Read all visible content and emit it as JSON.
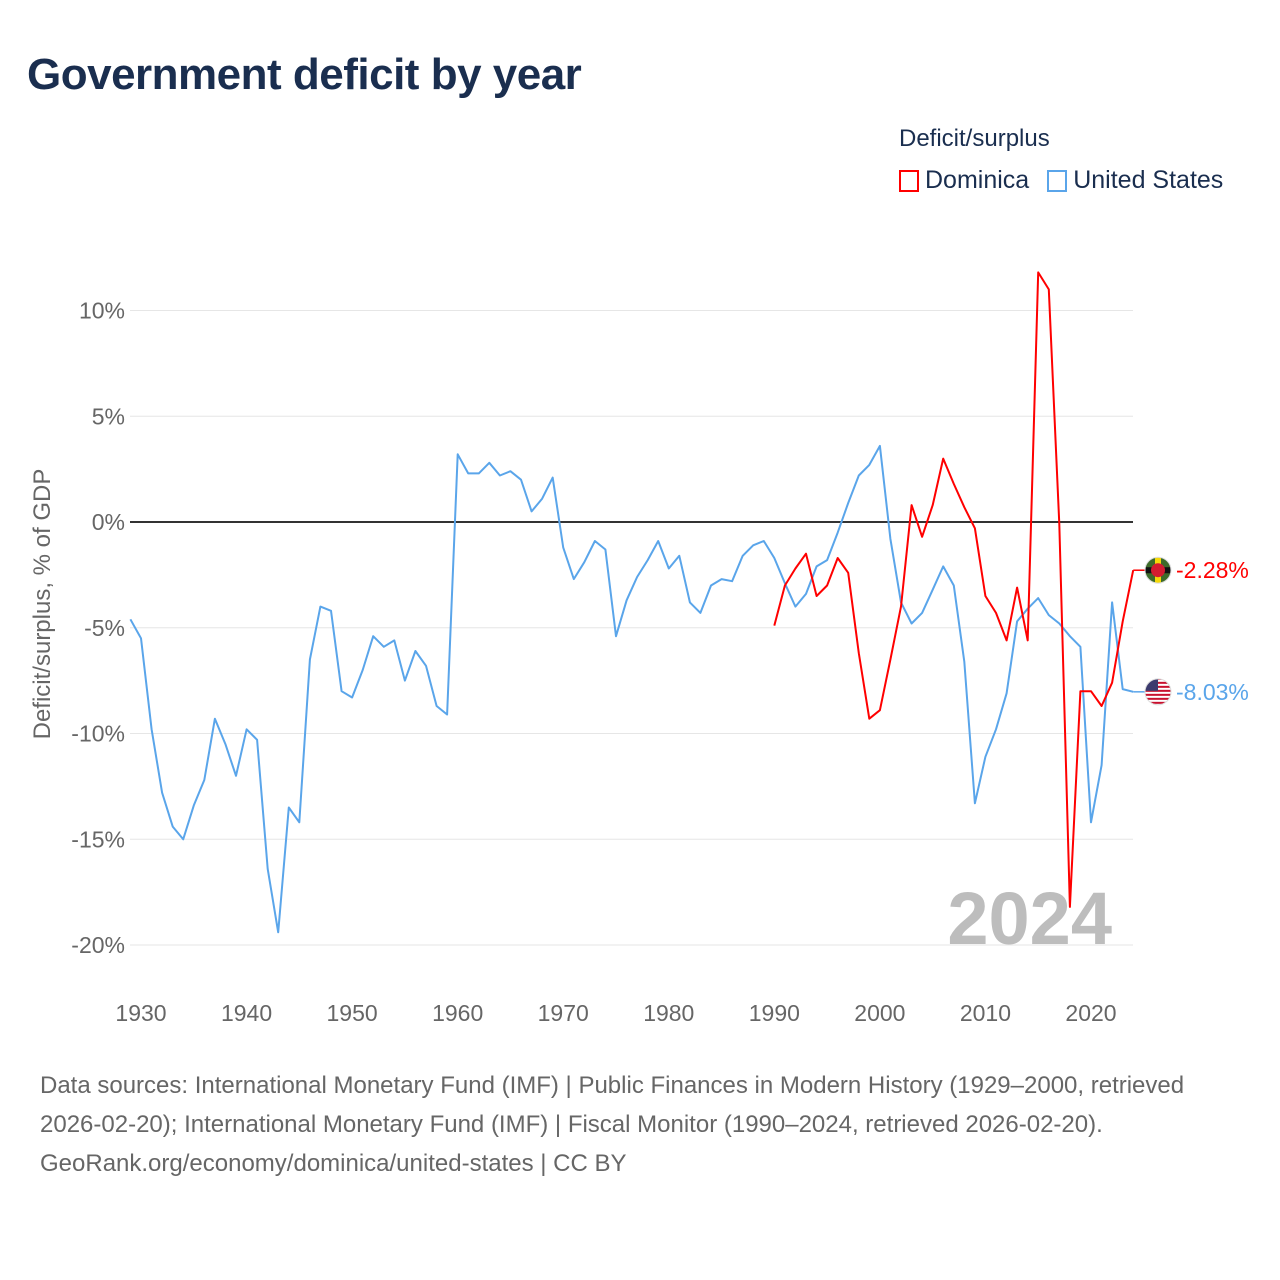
{
  "title": "Government deficit by year",
  "legend": {
    "title": "Deficit/surplus",
    "items": [
      {
        "label": "Dominica",
        "color": "#ff0000"
      },
      {
        "label": "United States",
        "color": "#5aa5ea"
      }
    ]
  },
  "year_watermark": "2024",
  "sources": {
    "text": "Data sources: International Monetary Fund (IMF) | Public Finances in Modern History (1929–2000, retrieved 2026-02-20); International Monetary Fund (IMF) | Fiscal Monitor (1990–2024, retrieved 2026-02-20).",
    "credit": "GeoRank.org/economy/dominica/united-states | CC BY"
  },
  "chart_data": {
    "type": "line",
    "title": "Government deficit by year",
    "xlabel": "",
    "ylabel": "Deficit/surplus, % of GDP",
    "xlim": [
      1929,
      2024
    ],
    "ylim": [
      -20,
      10
    ],
    "x_ticks": [
      1930,
      1940,
      1950,
      1960,
      1970,
      1980,
      1990,
      2000,
      2010,
      2020
    ],
    "y_ticks": [
      {
        "value": 10,
        "label": "10%"
      },
      {
        "value": 5,
        "label": "5%"
      },
      {
        "value": 0,
        "label": "0%"
      },
      {
        "value": -5,
        "label": "-5%"
      },
      {
        "value": -10,
        "label": "-10%"
      },
      {
        "value": -15,
        "label": "-15%"
      },
      {
        "value": -20,
        "label": "-20%"
      }
    ],
    "grid": true,
    "legend_position": "top-right",
    "series": [
      {
        "name": "United States",
        "color": "#5aa5ea",
        "end_label": "-8.03%",
        "start_year": 1929,
        "values": [
          -4.6,
          -5.5,
          -9.8,
          -12.8,
          -14.4,
          -15.0,
          -13.4,
          -12.2,
          -9.3,
          -10.5,
          -12.0,
          -9.8,
          -10.3,
          -16.4,
          -19.4,
          -13.5,
          -14.2,
          -6.5,
          -4.0,
          -4.2,
          -8.0,
          -8.3,
          -7.0,
          -5.4,
          -5.9,
          -5.6,
          -7.5,
          -6.1,
          -6.8,
          -8.7,
          -9.1,
          3.2,
          2.3,
          2.3,
          2.8,
          2.2,
          2.4,
          2.0,
          0.5,
          1.1,
          2.1,
          -1.2,
          -2.7,
          -1.9,
          -0.9,
          -1.3,
          -5.4,
          -3.7,
          -2.6,
          -1.8,
          -0.9,
          -2.2,
          -1.6,
          -3.8,
          -4.3,
          -3.0,
          -2.7,
          -2.8,
          -1.6,
          -1.1,
          -0.9,
          -1.7,
          -2.9,
          -4.0,
          -3.4,
          -2.1,
          -1.8,
          -0.5,
          0.9,
          2.2,
          2.7,
          3.6,
          -0.8,
          -3.8,
          -4.8,
          -4.3,
          -3.2,
          -2.1,
          -3.0,
          -6.6,
          -13.3,
          -11.1,
          -9.8,
          -8.1,
          -4.7,
          -4.1,
          -3.6,
          -4.4,
          -4.8,
          -5.4,
          -5.9,
          -14.2,
          -11.5,
          -3.8,
          -7.9,
          -8.03
        ]
      },
      {
        "name": "Dominica",
        "color": "#ff0000",
        "end_label": "-2.28%",
        "start_year": 1990,
        "values": [
          -4.9,
          -3.0,
          -2.2,
          -1.5,
          -3.5,
          -3.0,
          -1.7,
          -2.4,
          -6.2,
          -9.3,
          -8.9,
          -6.5,
          -4.0,
          0.8,
          -0.7,
          0.8,
          3.0,
          1.8,
          0.7,
          -0.3,
          -3.5,
          -4.3,
          -5.6,
          -3.1,
          -5.6,
          11.8,
          11.0,
          -0.1,
          -18.2,
          -8.0,
          -8.0,
          -8.7,
          -7.6,
          -4.7,
          -2.28
        ]
      }
    ]
  }
}
